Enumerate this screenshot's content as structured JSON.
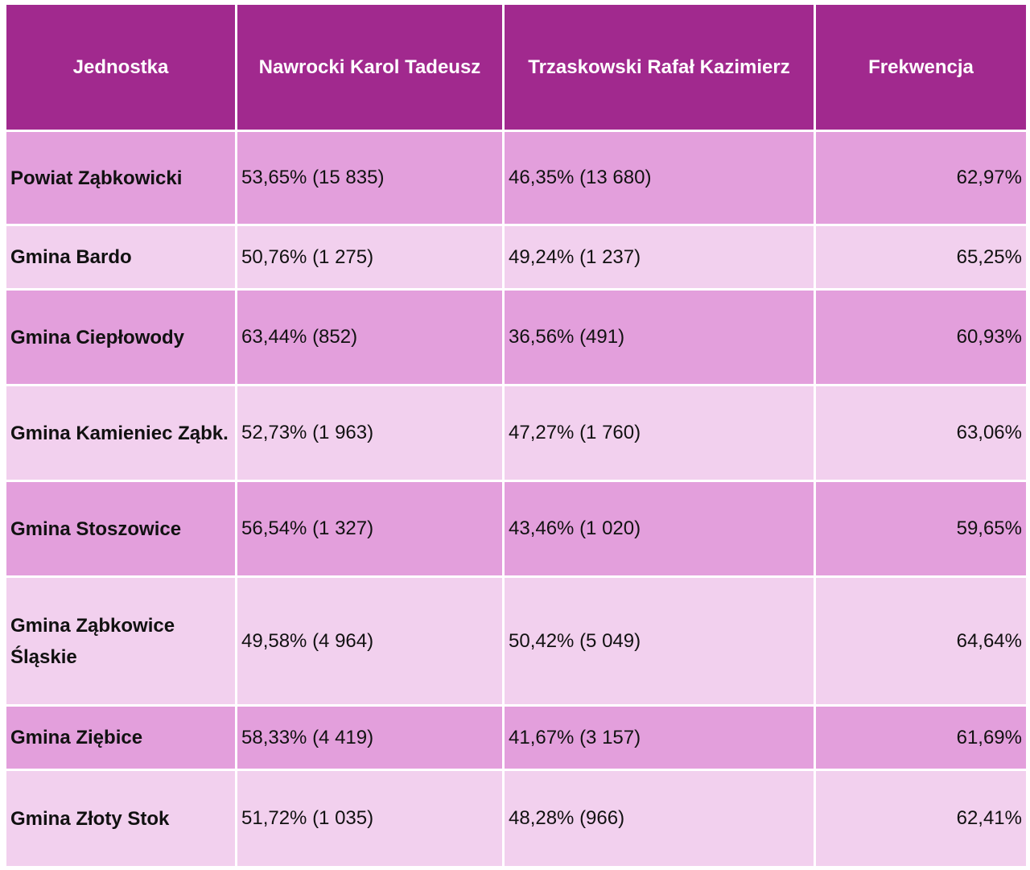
{
  "table": {
    "headers": [
      "Jednostka",
      "Nawrocki Karol Tadeusz",
      "Trzaskowski Rafał Kazimierz",
      "Frekwencja"
    ],
    "rows": [
      {
        "name": "Powiat Ząbkowicki",
        "nawrocki": "53,65% (15 835)",
        "trzaskowski": "46,35% (13 680)",
        "frekwencja": "62,97%"
      },
      {
        "name": "Gmina Bardo",
        "nawrocki": "50,76% (1 275)",
        "trzaskowski": "49,24% (1 237)",
        "frekwencja": "65,25%"
      },
      {
        "name": "Gmina Ciepłowody",
        "nawrocki": "63,44% (852)",
        "trzaskowski": "36,56% (491)",
        "frekwencja": "60,93%"
      },
      {
        "name": "Gmina Kamieniec Ząbk.",
        "nawrocki": "52,73% (1 963)",
        "trzaskowski": "47,27% (1 760)",
        "frekwencja": "63,06%"
      },
      {
        "name": "Gmina Stoszowice",
        "nawrocki": "56,54% (1 327)",
        "trzaskowski": "43,46% (1 020)",
        "frekwencja": "59,65%"
      },
      {
        "name": "Gmina Ząbkowice Śląskie",
        "nawrocki": "49,58% (4 964)",
        "trzaskowski": "50,42% (5 049)",
        "frekwencja": "64,64%"
      },
      {
        "name": "Gmina Ziębice",
        "nawrocki": "58,33% (4 419)",
        "trzaskowski": "41,67% (3 157)",
        "frekwencja": "61,69%"
      },
      {
        "name": "Gmina Złoty Stok",
        "nawrocki": "51,72% (1 035)",
        "trzaskowski": "48,28% (966)",
        "frekwencja": "62,41%"
      }
    ]
  },
  "colors": {
    "header_bg": "#a1298e",
    "row_dark": "#e39fdc",
    "row_light": "#f2d0ee"
  }
}
